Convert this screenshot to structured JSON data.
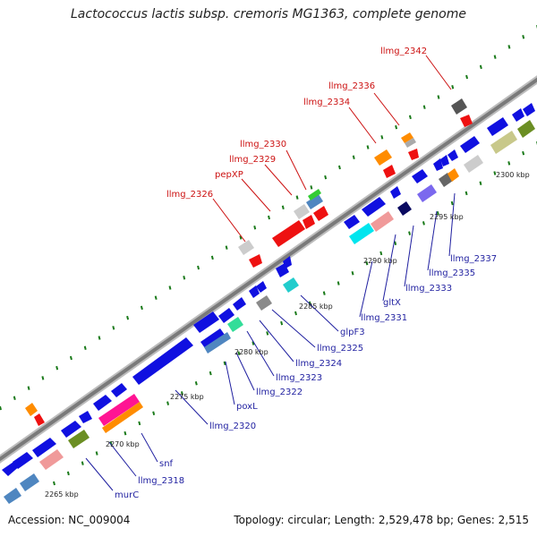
{
  "header": {
    "title": "Lactococcus lactis subsp. cremoris MG1363, complete genome"
  },
  "footer": {
    "accession": "Accession: NC_009004",
    "topology": "Topology: circular; Length: 2,529,478 bp; Genes: 2,515"
  },
  "colors": {
    "backbone": "#8a8a8a",
    "forward_gene": "#1010e0",
    "reverse_gene": "#ee1111",
    "tick": "#1a7a1a",
    "label_above": "#cc1111",
    "label_below": "#1f1fa0"
  },
  "ruler": [
    {
      "label": "2265 kbp"
    },
    {
      "label": "2270 kbp"
    },
    {
      "label": "2275 kbp"
    },
    {
      "label": "2280 kbp"
    },
    {
      "label": "2285 kbp"
    },
    {
      "label": "2290 kbp"
    },
    {
      "label": "2295 kbp"
    },
    {
      "label": "2300 kbp"
    }
  ],
  "labels_above": [
    {
      "name": "llmg_2326"
    },
    {
      "name": "pepXP"
    },
    {
      "name": "llmg_2329"
    },
    {
      "name": "llmg_2330"
    },
    {
      "name": "llmg_2334"
    },
    {
      "name": "llmg_2336"
    },
    {
      "name": "llmg_2342"
    }
  ],
  "labels_below": [
    {
      "name": "murC"
    },
    {
      "name": "llmg_2318"
    },
    {
      "name": "snf"
    },
    {
      "name": "llmg_2320"
    },
    {
      "name": "poxL"
    },
    {
      "name": "llmg_2322"
    },
    {
      "name": "llmg_2323"
    },
    {
      "name": "llmg_2324"
    },
    {
      "name": "llmg_2325"
    },
    {
      "name": "glpF3"
    },
    {
      "name": "llmg_2331"
    },
    {
      "name": "gltX"
    },
    {
      "name": "llmg_2333"
    },
    {
      "name": "llmg_2335"
    },
    {
      "name": "llmg_2337"
    }
  ]
}
